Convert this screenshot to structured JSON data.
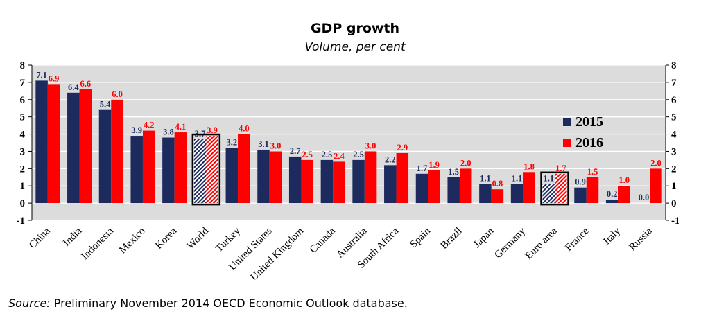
{
  "chart_data": {
    "type": "bar",
    "title": "GDP growth",
    "subtitle": "Volume, per cent",
    "categories": [
      "China",
      "India",
      "Indonesia",
      "Mexico",
      "Korea",
      "World",
      "Turkey",
      "United States",
      "United Kingdom",
      "Canada",
      "Australia",
      "South Africa",
      "Spain",
      "Brazil",
      "Japan",
      "Germany",
      "Euro area",
      "France",
      "Italy",
      "Russia"
    ],
    "series": [
      {
        "name": "2015",
        "color": "#1c2a5e",
        "values": [
          7.1,
          6.4,
          5.4,
          3.9,
          3.8,
          3.7,
          3.2,
          3.1,
          2.7,
          2.5,
          2.5,
          2.2,
          1.7,
          1.5,
          1.1,
          1.1,
          1.1,
          0.9,
          0.2,
          0.0
        ],
        "labels": [
          "7.1",
          "6.4",
          "5.4",
          "3.9",
          "3.8",
          "3.7",
          "3.2",
          "3.1",
          "2.7",
          "2.5",
          "2.5",
          "2.2",
          "1.7",
          "1.5",
          "1.1",
          "1.1",
          "1.1",
          "0.9",
          "0.2",
          "0.0"
        ]
      },
      {
        "name": "2016",
        "color": "#ff0000",
        "values": [
          6.9,
          6.6,
          6.0,
          4.2,
          4.1,
          3.9,
          4.0,
          3.0,
          2.5,
          2.4,
          3.0,
          2.9,
          1.9,
          2.0,
          0.8,
          1.8,
          1.7,
          1.5,
          1.0,
          2.0
        ],
        "labels": [
          "6.9",
          "6.6",
          "6.0",
          "4.2",
          "4.1",
          "3.9",
          "4.0",
          "3.0",
          "2.5",
          "2.4",
          "3.0",
          "2.9",
          "1.9",
          "2.0",
          "0.8",
          "1.8",
          "1.7",
          "1.5",
          "1.0",
          "2.0"
        ]
      }
    ],
    "highlighted_categories": [
      "World",
      "Euro area"
    ],
    "ylim": [
      -1,
      8
    ],
    "yticks": [
      "-1",
      "0",
      "1",
      "2",
      "3",
      "4",
      "5",
      "6",
      "7",
      "8"
    ],
    "secondary_axis": true,
    "grid": true,
    "legend_position": "right",
    "source_label": "Source:",
    "source_text": " Preliminary November 2014 OECD Economic Outlook database."
  }
}
